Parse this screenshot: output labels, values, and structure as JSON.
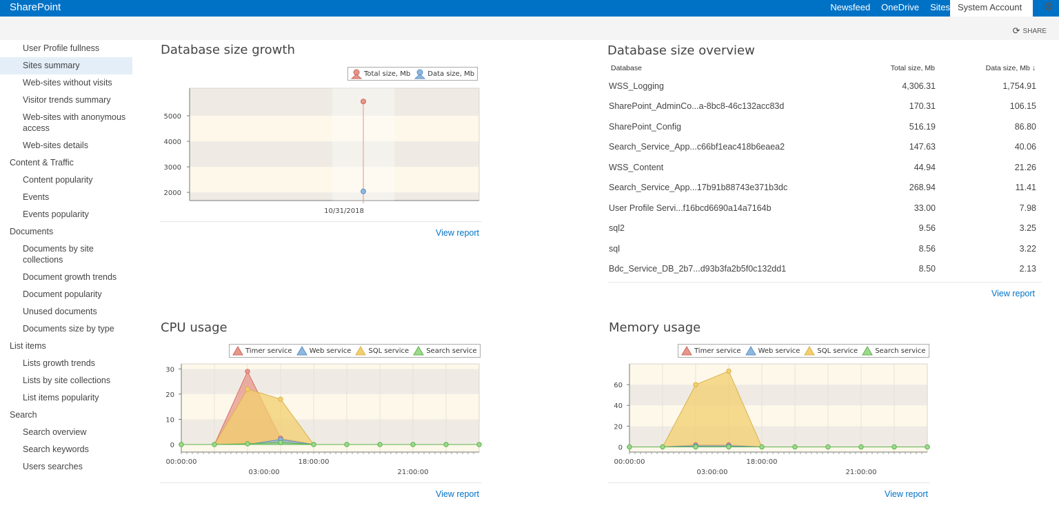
{
  "suite": {
    "brand": "SharePoint",
    "nav": [
      "Newsfeed",
      "OneDrive",
      "Sites"
    ],
    "account": "System Account",
    "share_label": "SHARE"
  },
  "sidebar": {
    "items": [
      {
        "label": "User Profile fullness",
        "level": 1
      },
      {
        "label": "Sites summary",
        "level": 1,
        "selected": true
      },
      {
        "label": "Web-sites without visits",
        "level": 1
      },
      {
        "label": "Visitor trends summary",
        "level": 1
      },
      {
        "label": "Web-sites with anonymous access",
        "level": 1
      },
      {
        "label": "Web-sites details",
        "level": 1
      },
      {
        "label": "Content & Traffic",
        "level": 0
      },
      {
        "label": "Content popularity",
        "level": 1
      },
      {
        "label": "Events",
        "level": 1
      },
      {
        "label": "Events popularity",
        "level": 1
      },
      {
        "label": "Documents",
        "level": 0
      },
      {
        "label": "Documents by site collections",
        "level": 1
      },
      {
        "label": "Document growth trends",
        "level": 1
      },
      {
        "label": "Document popularity",
        "level": 1
      },
      {
        "label": "Unused documents",
        "level": 1
      },
      {
        "label": "Documents size by type",
        "level": 1
      },
      {
        "label": "List items",
        "level": 0
      },
      {
        "label": "Lists growth trends",
        "level": 1
      },
      {
        "label": "Lists by site collections",
        "level": 1
      },
      {
        "label": "List items popularity",
        "level": 1
      },
      {
        "label": "Search",
        "level": 0
      },
      {
        "label": "Search overview",
        "level": 1
      },
      {
        "label": "Search keywords",
        "level": 1
      },
      {
        "label": "Users searches",
        "level": 1
      }
    ]
  },
  "growth": {
    "title": "Database size growth",
    "view_report": "View report"
  },
  "overview": {
    "title": "Database size overview",
    "columns": [
      "Database",
      "Total size, Mb",
      "Data size, Mb"
    ],
    "sort_arrow": "↓",
    "rows": [
      [
        "WSS_Logging",
        "4,306.31",
        "1,754.91"
      ],
      [
        "SharePoint_AdminCo...a-8bc8-46c132acc83d",
        "170.31",
        "106.15"
      ],
      [
        "SharePoint_Config",
        "516.19",
        "86.80"
      ],
      [
        "Search_Service_App...c66bf1eac418b6eaea2",
        "147.63",
        "40.06"
      ],
      [
        "WSS_Content",
        "44.94",
        "21.26"
      ],
      [
        "Search_Service_App...17b91b88743e371b3dc",
        "268.94",
        "11.41"
      ],
      [
        "User Profile Servi...f16bcd6690a14a7164b",
        "33.00",
        "7.98"
      ],
      [
        "sql2",
        "9.56",
        "3.25"
      ],
      [
        "sql",
        "8.56",
        "3.22"
      ],
      [
        "Bdc_Service_DB_2b7...d93b3fa2b5f0c132dd1",
        "8.50",
        "2.13"
      ]
    ],
    "view_report": "View report"
  },
  "cpu": {
    "title": "CPU usage",
    "view_report": "View report"
  },
  "memory": {
    "title": "Memory usage",
    "view_report": "View report"
  },
  "colors": {
    "accent": "#0072c6",
    "timer": "#e8968a",
    "timer_line": "#d4756a",
    "web": "#8fb8de",
    "web_line": "#5a8fc4",
    "sql": "#f2cf6e",
    "sql_line": "#d9b24f",
    "search": "#9ed98e",
    "search_line": "#5bb24a"
  },
  "chart_data": [
    {
      "id": "growth",
      "type": "scatter",
      "title": "Database size growth",
      "categories": [
        "10/31/2018"
      ],
      "series": [
        {
          "name": "Total size, Mb",
          "values": [
            5560
          ]
        },
        {
          "name": "Data size, Mb",
          "values": [
            2040
          ]
        }
      ],
      "yticks": [
        2000,
        3000,
        4000,
        5000
      ],
      "ylim": [
        1680,
        6080
      ]
    },
    {
      "id": "cpu",
      "type": "area",
      "title": "CPU usage",
      "x_labels": [
        "00:00:00",
        "03:00:00",
        "18:00:00",
        "21:00:00"
      ],
      "series": [
        {
          "name": "Timer service",
          "values": [
            0,
            0,
            29,
            2.5,
            0,
            0,
            0,
            0,
            0,
            0
          ]
        },
        {
          "name": "Web service",
          "values": [
            0,
            0,
            0,
            2,
            0,
            0,
            0,
            0,
            0,
            0
          ]
        },
        {
          "name": "SQL service",
          "values": [
            0,
            0,
            22,
            18,
            0,
            0,
            0,
            0,
            0,
            0
          ]
        },
        {
          "name": "Search service",
          "values": [
            0,
            0,
            0.3,
            0.8,
            0,
            0,
            0,
            0,
            0,
            0
          ]
        }
      ],
      "yticks": [
        0,
        10,
        20,
        30
      ],
      "ylim": [
        -3,
        32
      ]
    },
    {
      "id": "memory",
      "type": "area",
      "title": "Memory usage",
      "x_labels": [
        "00:00:00",
        "03:00:00",
        "18:00:00",
        "21:00:00"
      ],
      "series": [
        {
          "name": "Timer service",
          "values": [
            0,
            0,
            2,
            2,
            0,
            0,
            0,
            0,
            0,
            0
          ]
        },
        {
          "name": "Web service",
          "values": [
            0,
            0,
            1,
            1,
            0,
            0,
            0,
            0,
            0,
            0
          ]
        },
        {
          "name": "SQL service",
          "values": [
            0,
            0,
            60,
            73,
            0,
            0,
            0,
            0,
            0,
            0
          ]
        },
        {
          "name": "Search service",
          "values": [
            0,
            0,
            0,
            0,
            0,
            0,
            0,
            0,
            0,
            0
          ]
        }
      ],
      "yticks": [
        0,
        20,
        40,
        60
      ],
      "ylim": [
        -5,
        80
      ]
    }
  ]
}
